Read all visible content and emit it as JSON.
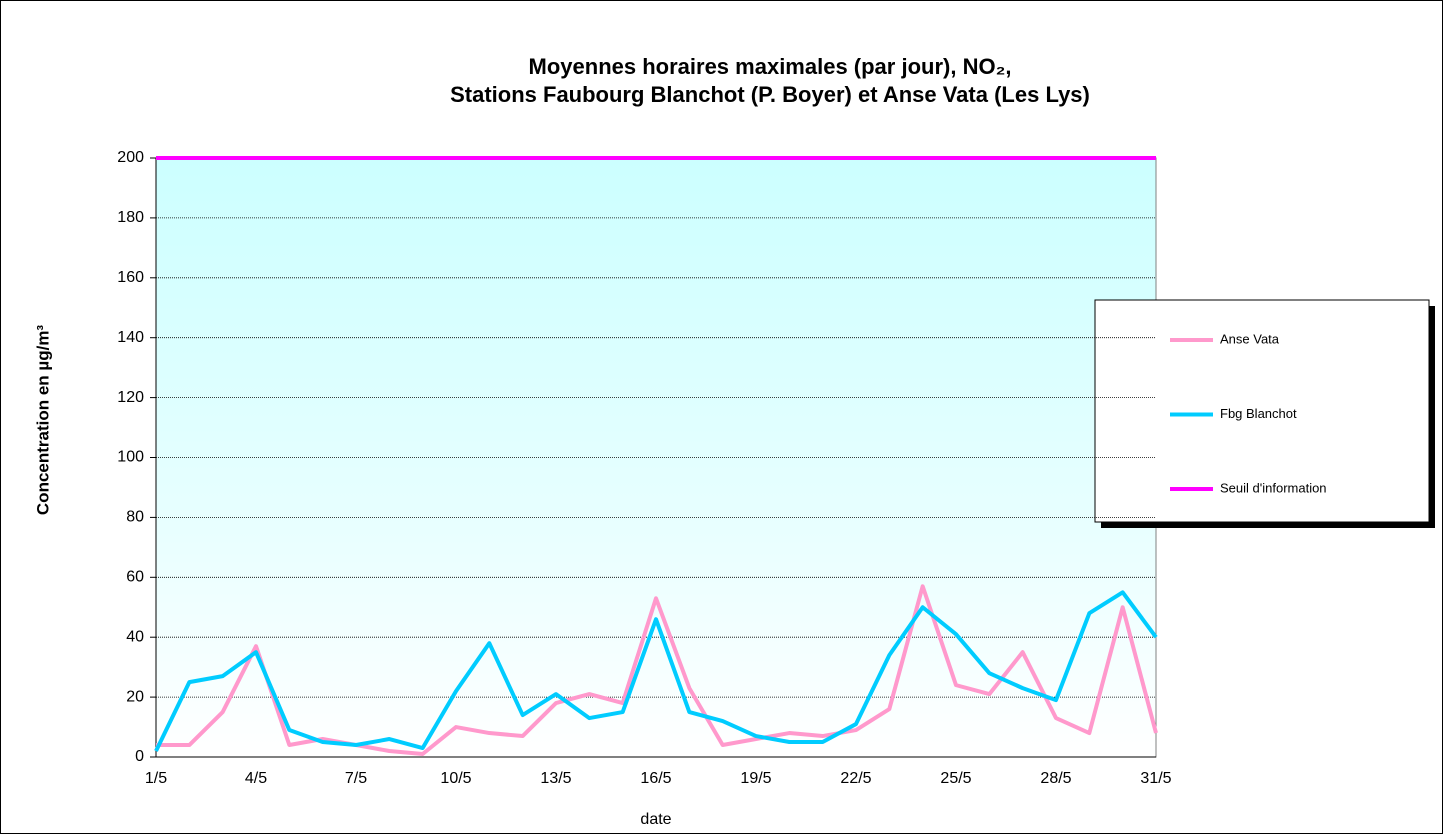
{
  "chart_data": {
    "type": "line",
    "title": [
      "Moyennes horaires maximales (par jour), NO₂,",
      "Stations Faubourg Blanchot (P. Boyer) et Anse Vata (Les Lys)"
    ],
    "x_label": "date",
    "y_label": "Concentration en µg/m³",
    "categories": [
      "1/5",
      null,
      null,
      "4/5",
      null,
      null,
      "7/5",
      null,
      null,
      "10/5",
      null,
      null,
      "13/5",
      null,
      null,
      "16/5",
      null,
      null,
      "19/5",
      null,
      null,
      "22/5",
      null,
      null,
      "25/5",
      null,
      null,
      "28/5",
      null,
      null,
      "31/5"
    ],
    "series": [
      {
        "name": "Anse Vata",
        "color": "#ff99cc",
        "values": [
          4,
          4,
          15,
          37,
          4,
          6,
          4,
          2,
          1,
          10,
          8,
          7,
          18,
          21,
          18,
          53,
          23,
          4,
          6,
          8,
          7,
          9,
          16,
          57,
          24,
          21,
          35,
          13,
          8,
          50,
          8
        ]
      },
      {
        "name": "Fbg Blanchot",
        "color": "#00ccff",
        "values": [
          2,
          25,
          27,
          35,
          9,
          5,
          4,
          6,
          3,
          22,
          38,
          14,
          21,
          13,
          15,
          46,
          15,
          12,
          7,
          5,
          5,
          11,
          34,
          50,
          41,
          28,
          23,
          19,
          48,
          55,
          40
        ]
      },
      {
        "name": "Seuil d'information",
        "color": "#ff00ff",
        "values": [
          200,
          200,
          200,
          200,
          200,
          200,
          200,
          200,
          200,
          200,
          200,
          200,
          200,
          200,
          200,
          200,
          200,
          200,
          200,
          200,
          200,
          200,
          200,
          200,
          200,
          200,
          200,
          200,
          200,
          200,
          200
        ]
      }
    ],
    "ylim": [
      0,
      200
    ],
    "yticks": [
      0,
      20,
      40,
      60,
      80,
      100,
      120,
      140,
      160,
      180,
      200
    ],
    "grid": true,
    "legend": "right"
  }
}
